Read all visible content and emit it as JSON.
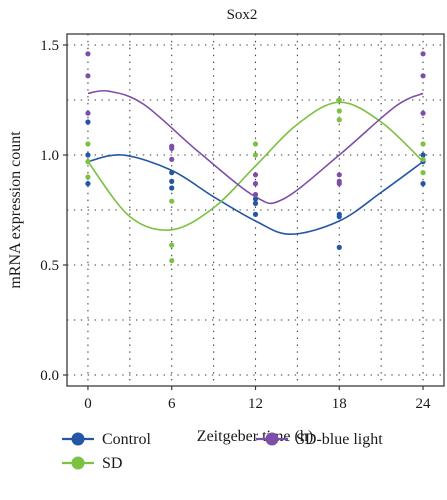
{
  "chart_data": {
    "type": "scatter",
    "title": "Sox2",
    "xlabel": "Zeitgeber time (h)",
    "ylabel": "mRNA expression count",
    "xlim": [
      -1.5,
      25.5
    ],
    "ylim": [
      -0.05,
      1.55
    ],
    "xticks": [
      "0",
      "6",
      "12",
      "18",
      "24"
    ],
    "xtick_values": [
      0,
      6,
      12,
      18,
      24
    ],
    "yticks": [
      "0.0",
      "0.5",
      "1.0",
      "1.5"
    ],
    "ytick_values": [
      0.0,
      0.5,
      1.0,
      1.5
    ],
    "grid": true,
    "legend_position": "bottom",
    "series": [
      {
        "name": "Control",
        "color": "#2456a6",
        "points": [
          [
            0,
            1.15
          ],
          [
            0,
            1.0
          ],
          [
            0,
            0.87
          ],
          [
            6,
            0.92
          ],
          [
            6,
            0.88
          ],
          [
            6,
            0.85
          ],
          [
            12,
            0.8
          ],
          [
            12,
            0.78
          ],
          [
            12,
            0.73
          ],
          [
            18,
            0.73
          ],
          [
            18,
            0.72
          ],
          [
            18,
            0.58
          ],
          [
            24,
            1.0
          ],
          [
            24,
            0.97
          ],
          [
            24,
            0.87
          ]
        ],
        "fit": [
          [
            0,
            0.97
          ],
          [
            2.5,
            1.0
          ],
          [
            6,
            0.93
          ],
          [
            9,
            0.81
          ],
          [
            12,
            0.7
          ],
          [
            14.5,
            0.64
          ],
          [
            18,
            0.7
          ],
          [
            21,
            0.83
          ],
          [
            24,
            0.97
          ]
        ]
      },
      {
        "name": "SD",
        "color": "#7cc142",
        "points": [
          [
            0,
            1.05
          ],
          [
            0,
            0.97
          ],
          [
            0,
            0.9
          ],
          [
            6,
            0.79
          ],
          [
            6,
            0.59
          ],
          [
            6,
            0.52
          ],
          [
            12,
            1.05
          ],
          [
            12,
            1.0
          ],
          [
            12,
            0.82
          ],
          [
            18,
            1.25
          ],
          [
            18,
            1.2
          ],
          [
            18,
            1.16
          ],
          [
            24,
            1.05
          ],
          [
            24,
            0.98
          ],
          [
            24,
            0.92
          ]
        ],
        "fit": [
          [
            0,
            0.97
          ],
          [
            3,
            0.72
          ],
          [
            6,
            0.66
          ],
          [
            9,
            0.76
          ],
          [
            12,
            0.95
          ],
          [
            15,
            1.14
          ],
          [
            18,
            1.24
          ],
          [
            21,
            1.15
          ],
          [
            24,
            0.97
          ]
        ]
      },
      {
        "name": "SD-blue light",
        "color": "#7d4fa6",
        "points": [
          [
            0,
            1.46
          ],
          [
            0,
            1.36
          ],
          [
            0,
            1.19
          ],
          [
            6,
            1.04
          ],
          [
            6,
            1.03
          ],
          [
            6,
            0.98
          ],
          [
            12,
            0.91
          ],
          [
            12,
            0.87
          ],
          [
            12,
            0.82
          ],
          [
            18,
            0.91
          ],
          [
            18,
            0.88
          ],
          [
            18,
            0.87
          ],
          [
            24,
            1.46
          ],
          [
            24,
            1.36
          ],
          [
            24,
            1.19
          ]
        ],
        "fit": [
          [
            0,
            1.28
          ],
          [
            1.5,
            1.29
          ],
          [
            4,
            1.23
          ],
          [
            8,
            1.01
          ],
          [
            12,
            0.81
          ],
          [
            14,
            0.8
          ],
          [
            18,
            1.0
          ],
          [
            22,
            1.22
          ],
          [
            24,
            1.28
          ]
        ]
      }
    ]
  }
}
